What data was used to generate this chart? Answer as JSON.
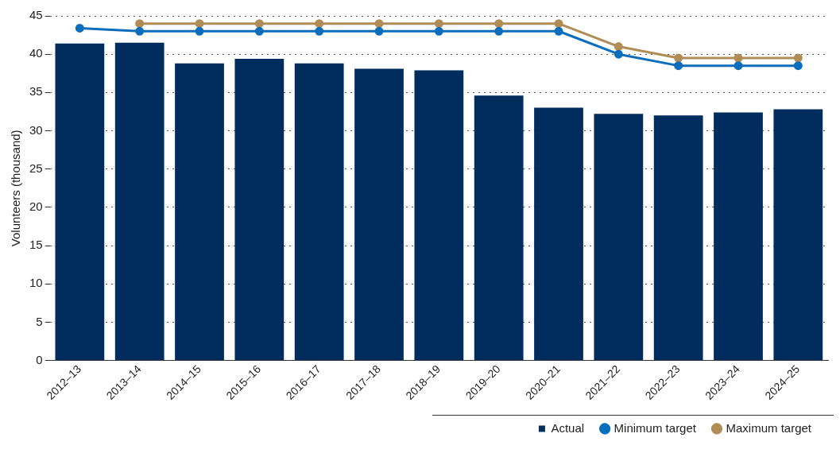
{
  "chart_data": {
    "type": "bar",
    "ylabel": "Volunteers (thousand)",
    "categories": [
      "2012–13",
      "2013–14",
      "2014–15",
      "2015–16",
      "2016–17",
      "2017–18",
      "2018–19",
      "2019–20",
      "2020–21",
      "2021–22",
      "2022–23",
      "2023–24",
      "2024–25"
    ],
    "series": [
      {
        "name": "Actual",
        "color": "#002d5e",
        "values": [
          41.4,
          41.5,
          38.8,
          39.4,
          38.8,
          38.1,
          37.9,
          34.6,
          33.0,
          32.2,
          32.0,
          32.4,
          32.8
        ]
      },
      {
        "name": "Minimum target",
        "type": "line",
        "color": "#0a6ebd",
        "marker": "circle",
        "values": [
          43.4,
          43,
          43,
          43,
          43,
          43,
          43,
          43,
          43,
          40,
          38.5,
          38.5,
          38.5
        ]
      },
      {
        "name": "Maximum target",
        "type": "line",
        "color": "#b08d57",
        "marker": "circle",
        "values": [
          null,
          44,
          44,
          44,
          44,
          44,
          44,
          44,
          44,
          41,
          39.5,
          39.5,
          39.5
        ]
      }
    ],
    "ylim": [
      0,
      45
    ],
    "yticks": [
      0,
      5,
      10,
      15,
      20,
      25,
      30,
      35,
      40,
      45
    ],
    "grid": "y",
    "legend": "bottom right"
  }
}
